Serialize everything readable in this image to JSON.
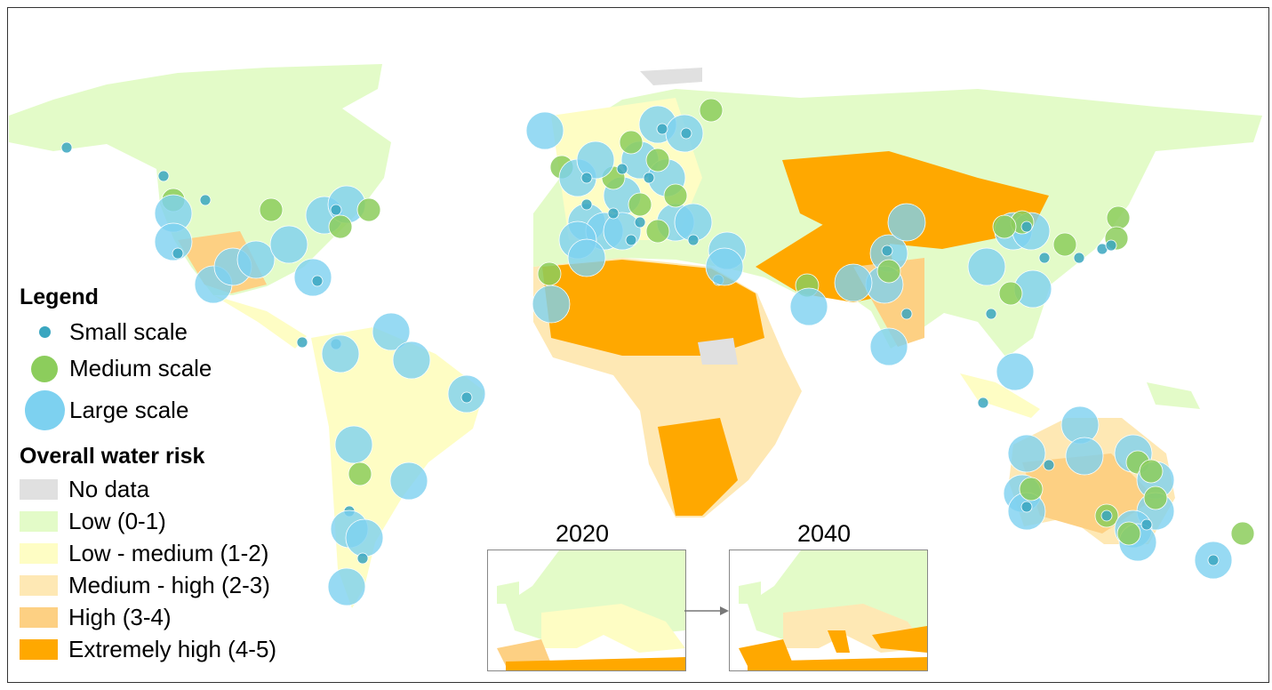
{
  "legend": {
    "title": "Legend",
    "scales": [
      {
        "label": "Small scale",
        "color": "#3aa6c0"
      },
      {
        "label": "Medium scale",
        "color": "#8ccd5c"
      },
      {
        "label": "Large scale",
        "color": "#7dd1f0"
      }
    ],
    "risk_title": "Overall water risk",
    "risk": [
      {
        "label": "No data",
        "color": "#e0e0e0"
      },
      {
        "label": "Low (0-1)",
        "color": "#e3fbc8"
      },
      {
        "label": "Low - medium (1-2)",
        "color": "#fefdc4"
      },
      {
        "label": "Medium - high (2-3)",
        "color": "#fee8b4"
      },
      {
        "label": "High (3-4)",
        "color": "#fdd083"
      },
      {
        "label": "Extremely high (4-5)",
        "color": "#ffa800"
      }
    ]
  },
  "insets": [
    {
      "year": "2020"
    },
    {
      "year": "2040"
    }
  ]
}
